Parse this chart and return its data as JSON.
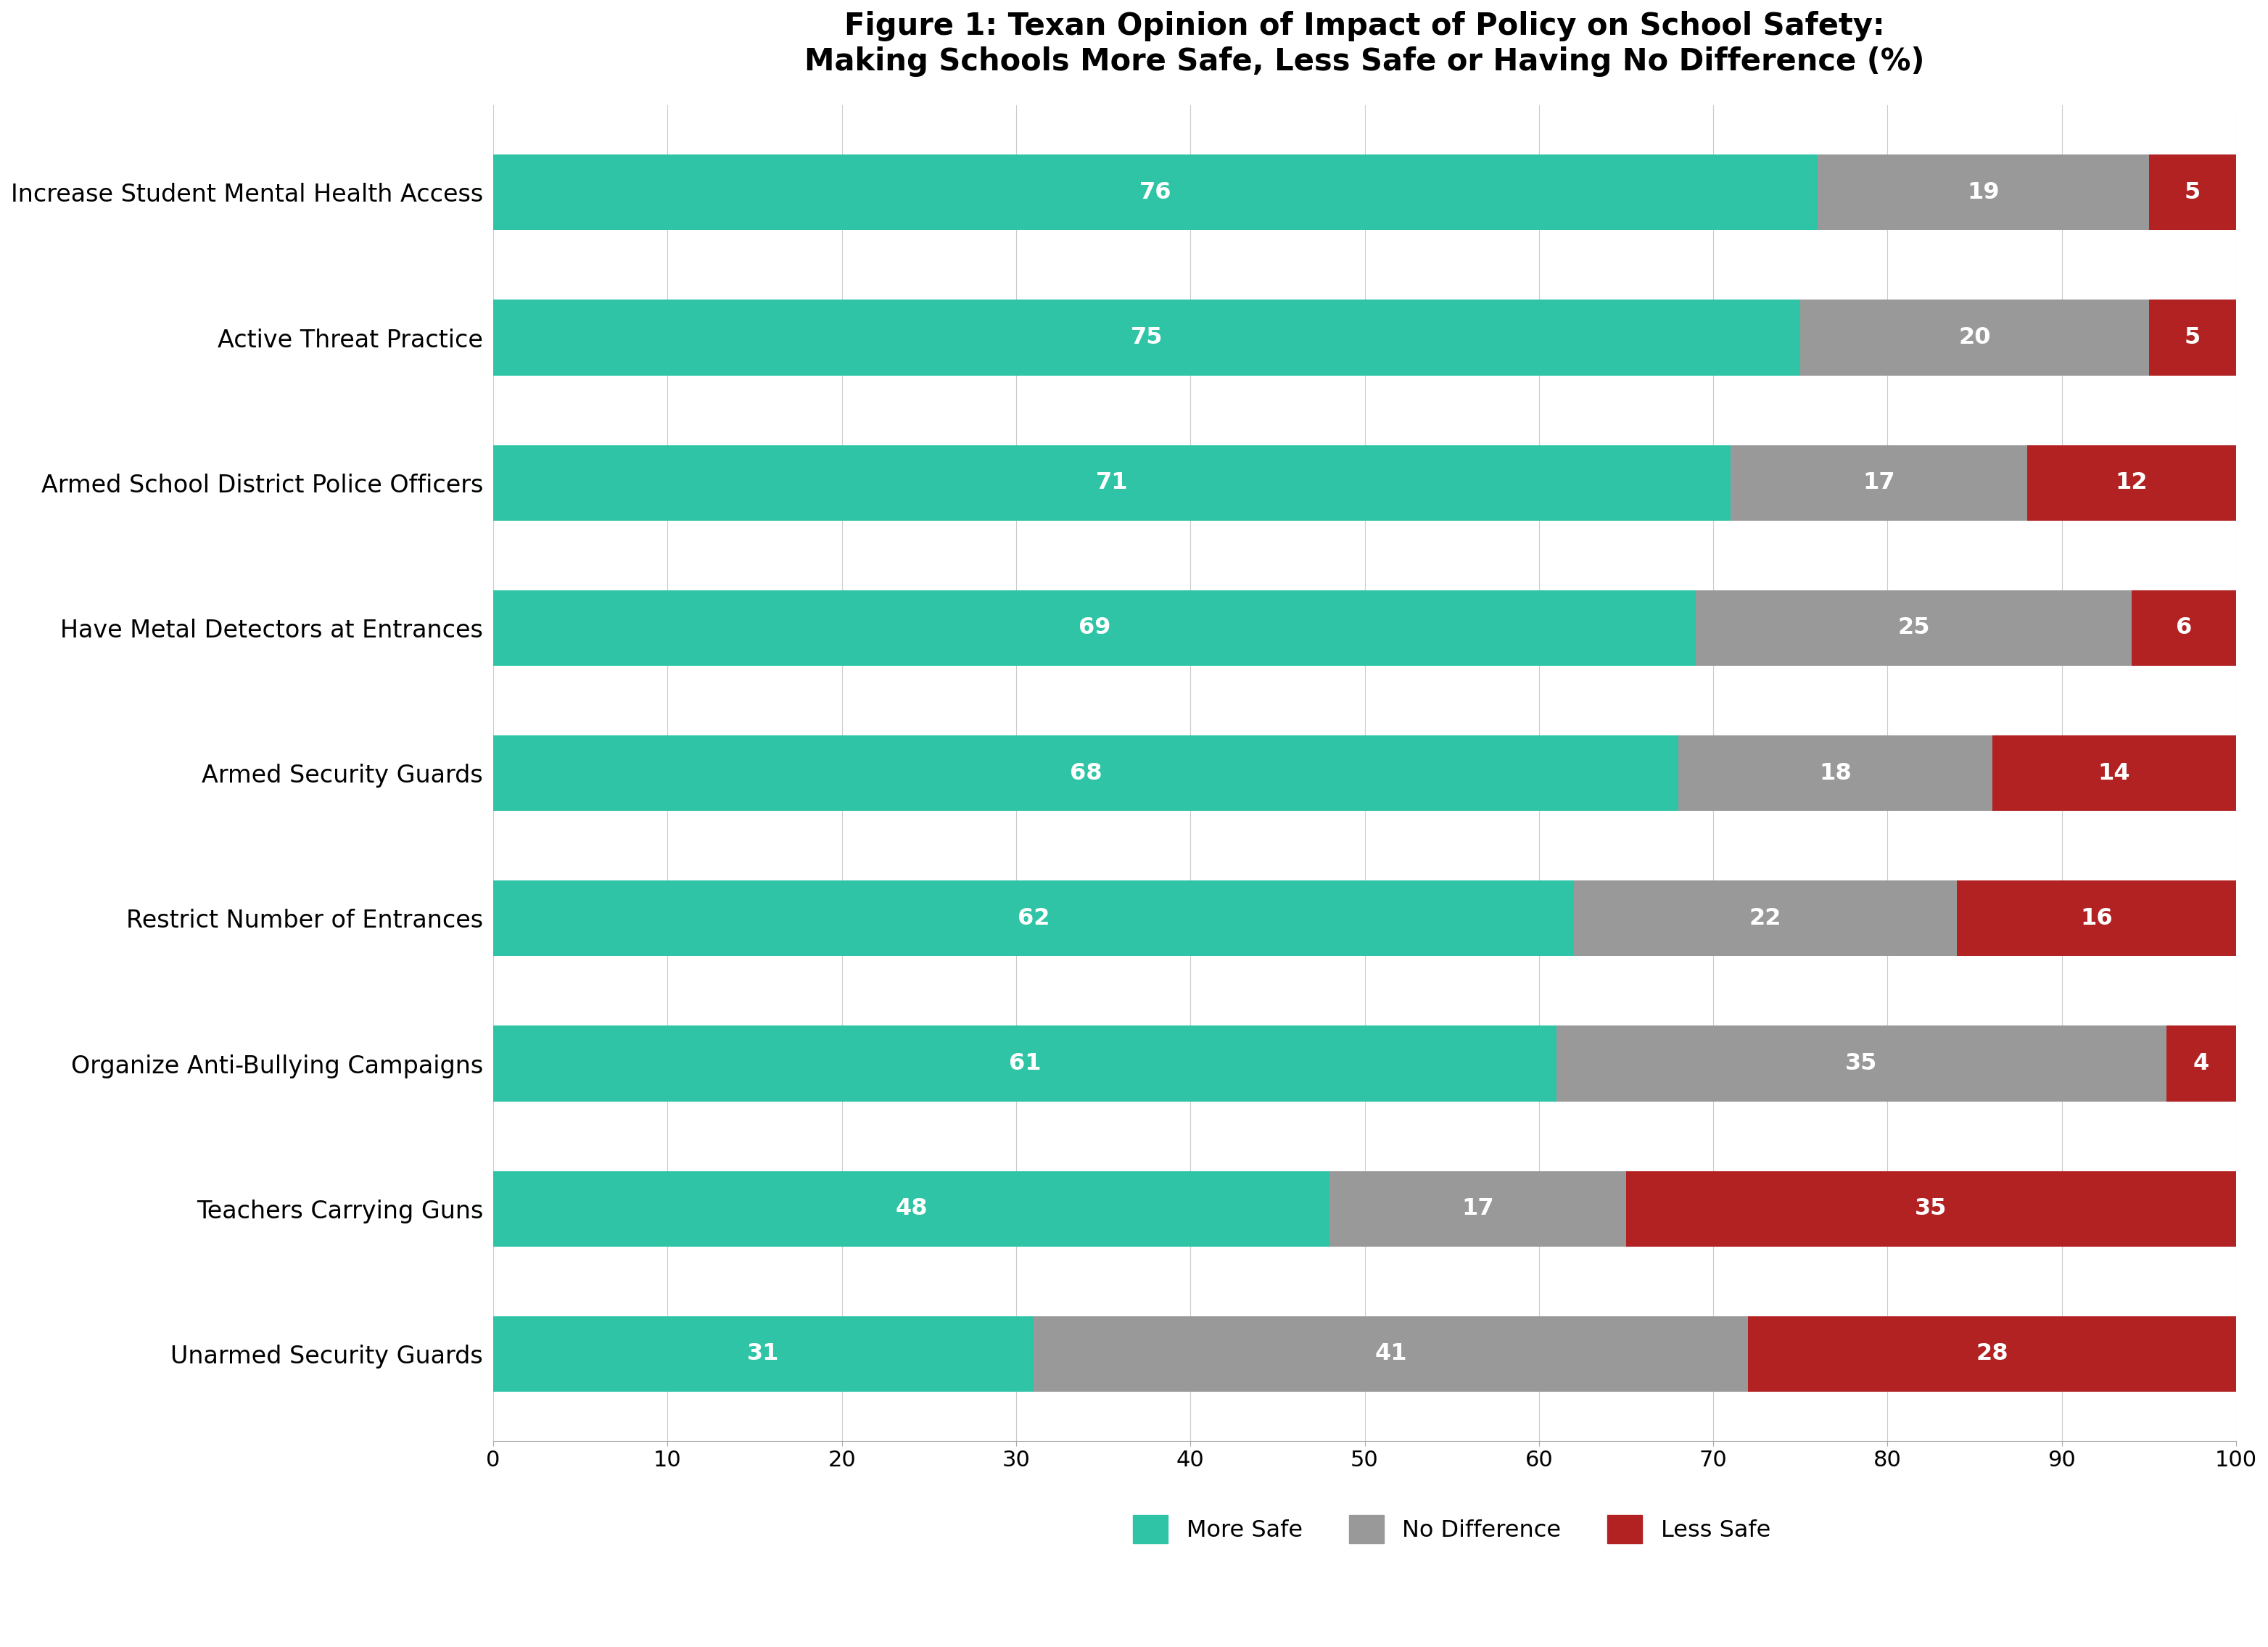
{
  "title": "Figure 1: Texan Opinion of Impact of Policy on School Safety:\nMaking Schools More Safe, Less Safe or Having No Difference (%)",
  "categories": [
    "Increase Student Mental Health Access",
    "Active Threat Practice",
    "Armed School District Police Officers",
    "Have Metal Detectors at Entrances",
    "Armed Security Guards",
    "Restrict Number of Entrances",
    "Organize Anti-Bullying Campaigns",
    "Teachers Carrying Guns",
    "Unarmed Security Guards"
  ],
  "more_safe": [
    76,
    75,
    71,
    69,
    68,
    62,
    61,
    48,
    31
  ],
  "no_difference": [
    19,
    20,
    17,
    25,
    18,
    22,
    35,
    17,
    41
  ],
  "less_safe": [
    5,
    5,
    12,
    6,
    14,
    16,
    4,
    35,
    28
  ],
  "color_more_safe": "#2ec4a5",
  "color_no_difference": "#999999",
  "color_less_safe": "#b22222",
  "bar_height": 0.52,
  "xlim": [
    0,
    100
  ],
  "xticks": [
    0,
    10,
    20,
    30,
    40,
    50,
    60,
    70,
    80,
    90,
    100
  ],
  "legend_labels": [
    "More Safe",
    "No Difference",
    "Less Safe"
  ],
  "title_fontsize": 30,
  "label_fontsize": 24,
  "tick_fontsize": 22,
  "value_fontsize": 23,
  "legend_fontsize": 23,
  "background_color": "#ffffff"
}
